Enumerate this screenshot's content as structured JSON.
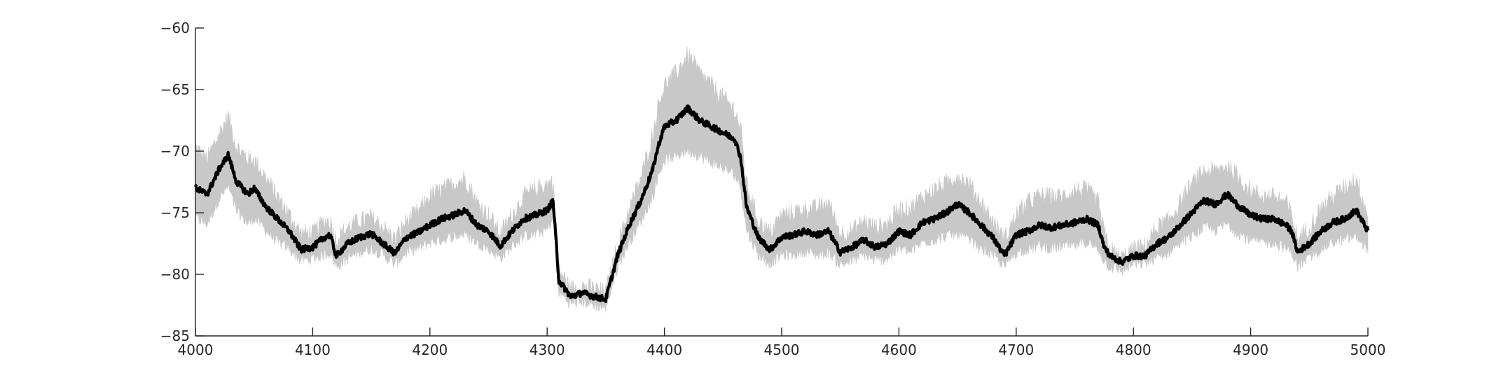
{
  "chart_data": {
    "type": "line",
    "title": "",
    "xlabel": "",
    "ylabel": "",
    "xlim": [
      4000,
      5000
    ],
    "ylim": [
      -85,
      -60
    ],
    "x_ticks": [
      4000,
      4100,
      4200,
      4300,
      4400,
      4500,
      4600,
      4700,
      4800,
      4900,
      5000
    ],
    "y_ticks": [
      -60,
      -65,
      -70,
      -75,
      -80,
      -85
    ],
    "x_tick_labels": [
      "4000",
      "4100",
      "4200",
      "4300",
      "4400",
      "4500",
      "4600",
      "4700",
      "4800",
      "4900",
      "5000"
    ],
    "y_tick_labels": [
      "−60",
      "−65",
      "−70",
      "−75",
      "−80",
      "−85"
    ],
    "grid": false,
    "legend": "none",
    "series": [
      {
        "role": "mean",
        "color": "#000000",
        "x": [
          4000,
          4010,
          4020,
          4028,
          4035,
          4045,
          4050,
          4060,
          4070,
          4080,
          4090,
          4100,
          4110,
          4115,
          4120,
          4130,
          4140,
          4150,
          4160,
          4170,
          4180,
          4190,
          4200,
          4210,
          4220,
          4230,
          4240,
          4250,
          4260,
          4270,
          4280,
          4290,
          4300,
          4305,
          4310,
          4320,
          4330,
          4340,
          4350,
          4360,
          4370,
          4380,
          4390,
          4395,
          4400,
          4410,
          4420,
          4430,
          4440,
          4450,
          4460,
          4465,
          4470,
          4480,
          4490,
          4500,
          4510,
          4520,
          4530,
          4540,
          4550,
          4560,
          4570,
          4580,
          4590,
          4600,
          4610,
          4620,
          4630,
          4640,
          4650,
          4660,
          4670,
          4680,
          4690,
          4700,
          4710,
          4720,
          4730,
          4740,
          4750,
          4760,
          4770,
          4775,
          4780,
          4790,
          4800,
          4810,
          4820,
          4830,
          4840,
          4850,
          4860,
          4870,
          4880,
          4890,
          4900,
          4910,
          4920,
          4930,
          4935,
          4940,
          4950,
          4960,
          4970,
          4980,
          4990,
          5000
        ],
        "y": [
          -73.0,
          -73.5,
          -71.5,
          -70.3,
          -72.5,
          -73.5,
          -73.0,
          -74.5,
          -75.5,
          -76.5,
          -78.0,
          -77.8,
          -77.0,
          -76.8,
          -78.5,
          -77.5,
          -77.0,
          -76.7,
          -77.5,
          -78.3,
          -77.0,
          -76.6,
          -76.0,
          -75.5,
          -75.2,
          -74.8,
          -76.0,
          -76.5,
          -77.7,
          -76.5,
          -75.5,
          -75.2,
          -74.8,
          -74.0,
          -80.5,
          -81.8,
          -81.5,
          -81.8,
          -82.0,
          -78.5,
          -76.0,
          -74.0,
          -71.5,
          -69.5,
          -68.0,
          -67.5,
          -66.5,
          -67.5,
          -68.0,
          -68.5,
          -69.0,
          -70.5,
          -74.5,
          -77.0,
          -78.0,
          -77.0,
          -76.8,
          -76.5,
          -76.8,
          -76.5,
          -78.2,
          -77.8,
          -77.2,
          -77.8,
          -77.5,
          -76.5,
          -76.8,
          -75.8,
          -75.5,
          -75.0,
          -74.3,
          -75.0,
          -76.0,
          -77.0,
          -78.5,
          -76.8,
          -76.5,
          -76.0,
          -76.2,
          -76.0,
          -75.8,
          -75.5,
          -76.0,
          -77.8,
          -78.5,
          -79.0,
          -78.5,
          -78.5,
          -77.5,
          -77.0,
          -76.0,
          -75.0,
          -74.0,
          -74.3,
          -73.5,
          -74.5,
          -75.2,
          -75.5,
          -75.5,
          -76.0,
          -76.5,
          -78.2,
          -77.5,
          -76.5,
          -75.8,
          -75.5,
          -74.8,
          -76.5
        ]
      },
      {
        "role": "spread",
        "color": "#c8c8c8",
        "x": [
          4000,
          4010,
          4020,
          4028,
          4035,
          4045,
          4050,
          4060,
          4070,
          4080,
          4090,
          4100,
          4110,
          4115,
          4120,
          4130,
          4140,
          4150,
          4160,
          4170,
          4180,
          4190,
          4200,
          4210,
          4220,
          4230,
          4240,
          4250,
          4260,
          4270,
          4280,
          4290,
          4300,
          4305,
          4310,
          4320,
          4330,
          4340,
          4350,
          4360,
          4370,
          4380,
          4390,
          4395,
          4400,
          4410,
          4420,
          4430,
          4440,
          4450,
          4460,
          4465,
          4470,
          4480,
          4490,
          4500,
          4510,
          4520,
          4530,
          4540,
          4550,
          4560,
          4570,
          4580,
          4590,
          4600,
          4610,
          4620,
          4630,
          4640,
          4650,
          4660,
          4670,
          4680,
          4690,
          4700,
          4710,
          4720,
          4730,
          4740,
          4750,
          4760,
          4770,
          4775,
          4780,
          4790,
          4800,
          4810,
          4820,
          4830,
          4840,
          4850,
          4860,
          4870,
          4880,
          4890,
          4900,
          4910,
          4920,
          4930,
          4935,
          4940,
          4950,
          4960,
          4970,
          4980,
          4990,
          5000
        ],
        "upper": [
          -69.5,
          -70.5,
          -68.5,
          -67.0,
          -69.5,
          -70.5,
          -70.5,
          -72.0,
          -73.5,
          -75.0,
          -76.5,
          -76.5,
          -75.5,
          -75.5,
          -77.0,
          -76.0,
          -75.5,
          -75.2,
          -76.0,
          -77.0,
          -75.5,
          -74.8,
          -73.5,
          -73.0,
          -72.5,
          -72.0,
          -74.0,
          -75.0,
          -76.5,
          -75.0,
          -73.5,
          -73.0,
          -72.5,
          -72.3,
          -79.5,
          -81.0,
          -80.8,
          -81.0,
          -81.3,
          -77.5,
          -74.5,
          -72.0,
          -68.5,
          -66.0,
          -64.5,
          -63.5,
          -62.0,
          -63.5,
          -64.5,
          -65.5,
          -66.5,
          -68.0,
          -72.5,
          -75.5,
          -76.5,
          -75.0,
          -74.8,
          -74.5,
          -74.5,
          -74.0,
          -76.5,
          -76.3,
          -75.5,
          -76.0,
          -75.8,
          -74.5,
          -74.5,
          -73.5,
          -73.0,
          -72.5,
          -71.8,
          -72.5,
          -74.0,
          -75.5,
          -77.0,
          -75.0,
          -74.0,
          -73.5,
          -73.5,
          -73.5,
          -73.0,
          -73.0,
          -74.0,
          -76.5,
          -77.8,
          -78.5,
          -77.8,
          -77.5,
          -76.0,
          -75.5,
          -74.0,
          -72.5,
          -71.5,
          -71.5,
          -71.0,
          -72.0,
          -73.0,
          -73.5,
          -73.5,
          -74.0,
          -75.0,
          -77.0,
          -76.0,
          -74.5,
          -73.5,
          -72.8,
          -72.0,
          -75.0
        ],
        "lower": [
          -75.5,
          -76.0,
          -74.0,
          -73.0,
          -75.0,
          -76.0,
          -75.5,
          -76.5,
          -77.5,
          -78.0,
          -79.0,
          -78.8,
          -78.5,
          -78.3,
          -79.5,
          -78.8,
          -78.3,
          -78.0,
          -78.5,
          -79.3,
          -78.3,
          -78.0,
          -77.5,
          -77.3,
          -77.0,
          -76.8,
          -77.5,
          -78.0,
          -78.8,
          -77.8,
          -77.0,
          -76.8,
          -76.5,
          -75.5,
          -81.5,
          -82.5,
          -82.3,
          -82.6,
          -82.8,
          -79.5,
          -77.5,
          -75.8,
          -73.8,
          -72.0,
          -70.8,
          -70.5,
          -70.0,
          -70.5,
          -71.0,
          -71.5,
          -72.0,
          -73.0,
          -76.5,
          -78.5,
          -79.2,
          -78.5,
          -78.5,
          -78.2,
          -78.5,
          -78.3,
          -79.3,
          -79.0,
          -78.5,
          -79.0,
          -78.8,
          -78.0,
          -78.3,
          -77.5,
          -77.3,
          -77.0,
          -76.8,
          -77.3,
          -78.0,
          -78.5,
          -79.5,
          -78.3,
          -78.0,
          -77.8,
          -78.0,
          -77.8,
          -77.8,
          -77.5,
          -78.0,
          -79.0,
          -79.5,
          -79.8,
          -79.3,
          -79.2,
          -78.8,
          -78.3,
          -77.5,
          -77.0,
          -76.3,
          -76.5,
          -76.0,
          -76.8,
          -77.3,
          -77.5,
          -77.5,
          -78.0,
          -78.3,
          -79.5,
          -78.8,
          -78.0,
          -77.5,
          -77.3,
          -77.0,
          -78.0
        ]
      }
    ]
  }
}
